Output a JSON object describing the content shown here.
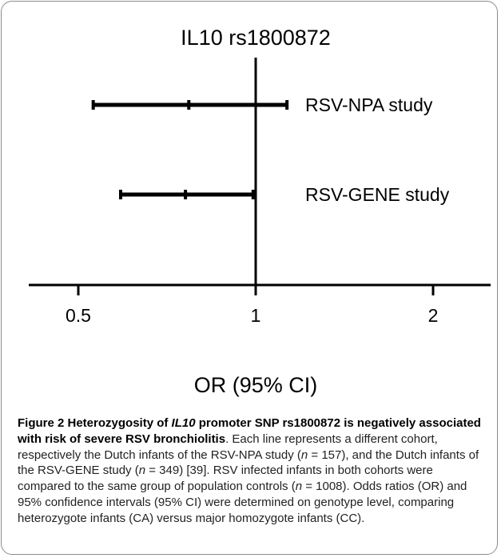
{
  "chart_data": {
    "type": "forest",
    "title": "IL10 rs1800872",
    "xlabel": "OR (95% CI)",
    "xscale": "log",
    "xlim": [
      0.42,
      2.5
    ],
    "xticks": [
      0.5,
      1,
      2
    ],
    "xtick_labels": [
      "0.5",
      "1",
      "2"
    ],
    "reference_line": 1,
    "series": [
      {
        "name": "RSV-NPA study",
        "or": 0.77,
        "ci_low": 0.53,
        "ci_high": 1.13
      },
      {
        "name": "RSV-GENE study",
        "or": 0.76,
        "ci_low": 0.59,
        "ci_high": 0.99
      }
    ]
  },
  "caption": {
    "figure_label": "Figure 2 Heterozygosity of ",
    "gene": "IL10",
    "bold_rest": " promoter SNP rs1800872 is negatively associated with risk of severe RSV bronchiolitis",
    "bold_end": ".",
    "p1": " Each line represents a different cohort, respectively the Dutch infants of the RSV-NPA study (",
    "n1_var": "n",
    "n1_val": " = 157), and the Dutch infants of the RSV-GENE study (",
    "n2_var": "n",
    "n2_val": " = 349) [39]. RSV infected infants in both cohorts were compared to the same group of population controls (",
    "n3_var": "n",
    "n3_val": " = 1008). Odds ratios (OR) and 95% confidence intervals (95% CI) were determined on genotype level, comparing heterozygote infants (CA) versus major homozygote infants (CC)."
  }
}
